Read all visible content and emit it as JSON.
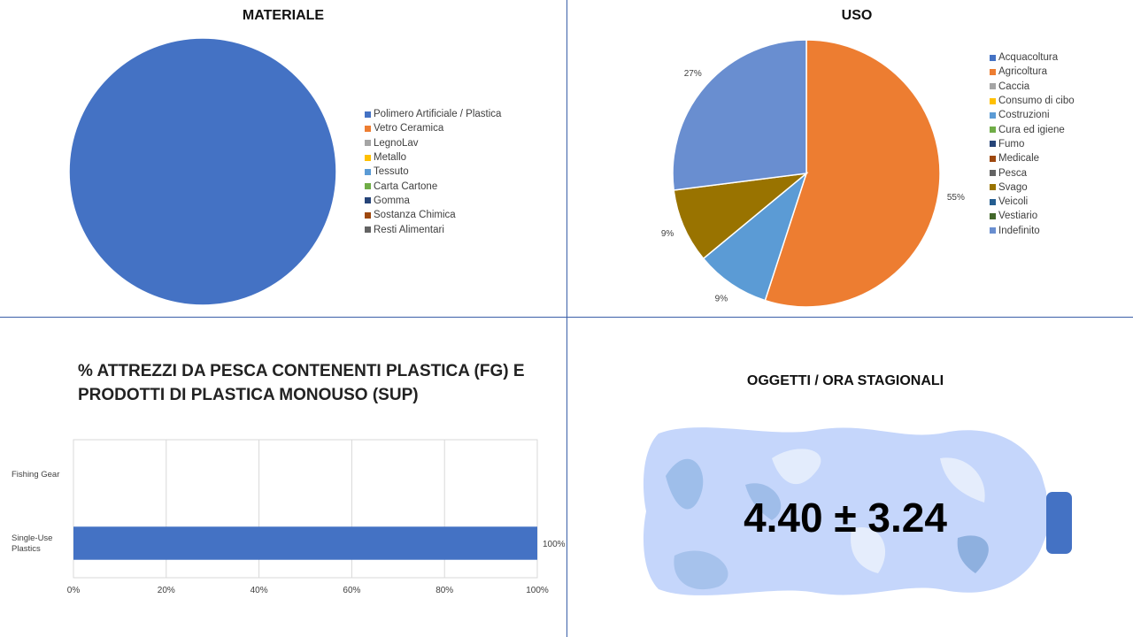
{
  "colors": {
    "divider": "#3b5fa8",
    "blue": "#4472c4",
    "orange": "#ed7d31",
    "gray": "#a5a5a5",
    "gold": "#ffc000",
    "lightblue": "#5b9bd5",
    "green": "#70ad47",
    "navy": "#264478",
    "brown": "#9e480e",
    "darkgray": "#636363",
    "olive": "#997300",
    "steel": "#255e91",
    "darkgreen": "#43682b",
    "periwinkle": "#698ed0"
  },
  "chart_data": [
    {
      "type": "pie",
      "title": "MATERIALE",
      "legend_placement": "right",
      "categories": [
        "Polimero Artificiale / Plastica",
        "Vetro Ceramica",
        "LegnoLav",
        "Metallo",
        "Tessuto",
        "Carta Cartone",
        "Gomma",
        "Sostanza Chimica",
        "Resti Alimentari"
      ],
      "values": [
        100,
        0,
        0,
        0,
        0,
        0,
        0,
        0,
        0
      ],
      "colors": [
        "#4472c4",
        "#ed7d31",
        "#a5a5a5",
        "#ffc000",
        "#5b9bd5",
        "#70ad47",
        "#264478",
        "#9e480e",
        "#636363"
      ]
    },
    {
      "type": "pie",
      "title": "USO",
      "legend_placement": "right",
      "categories": [
        "Acquacoltura",
        "Agricoltura",
        "Caccia",
        "Consumo di cibo",
        "Costruzioni",
        "Cura ed igiene",
        "Fumo",
        "Medicale",
        "Pesca",
        "Svago",
        "Veicoli",
        "Vestiario",
        "Indefinito"
      ],
      "values": [
        0,
        55,
        0,
        0,
        9,
        0,
        0,
        0,
        0,
        9,
        0,
        0,
        27
      ],
      "labels": [
        "",
        "55%",
        "",
        "",
        "9%",
        "",
        "",
        "",
        "",
        "9%",
        "",
        "",
        "27%"
      ],
      "colors": [
        "#4472c4",
        "#ed7d31",
        "#a5a5a5",
        "#ffc000",
        "#5b9bd5",
        "#70ad47",
        "#264478",
        "#9e480e",
        "#636363",
        "#997300",
        "#255e91",
        "#43682b",
        "#698ed0"
      ]
    },
    {
      "type": "bar",
      "orientation": "horizontal",
      "title": "% ATTREZZI DA PESCA CONTENENTI PLASTICA (FG) E PRODOTTI DI PLASTICA MONOUSO (SUP)",
      "categories": [
        "Fishing Gear",
        "Single-Use Plastics"
      ],
      "category_labels": [
        [
          "Fishing Gear"
        ],
        [
          "Single-Use",
          "Plastics"
        ]
      ],
      "values": [
        0,
        100
      ],
      "value_labels": [
        "",
        "100%"
      ],
      "xlim": [
        0,
        100
      ],
      "xticks": [
        "0%",
        "20%",
        "40%",
        "60%",
        "80%",
        "100%"
      ],
      "grid": true,
      "color": "#4472c4"
    }
  ],
  "stat": {
    "title": "OGGETTI / ORA STAGIONALI",
    "value": "4.40 ± 3.24"
  }
}
